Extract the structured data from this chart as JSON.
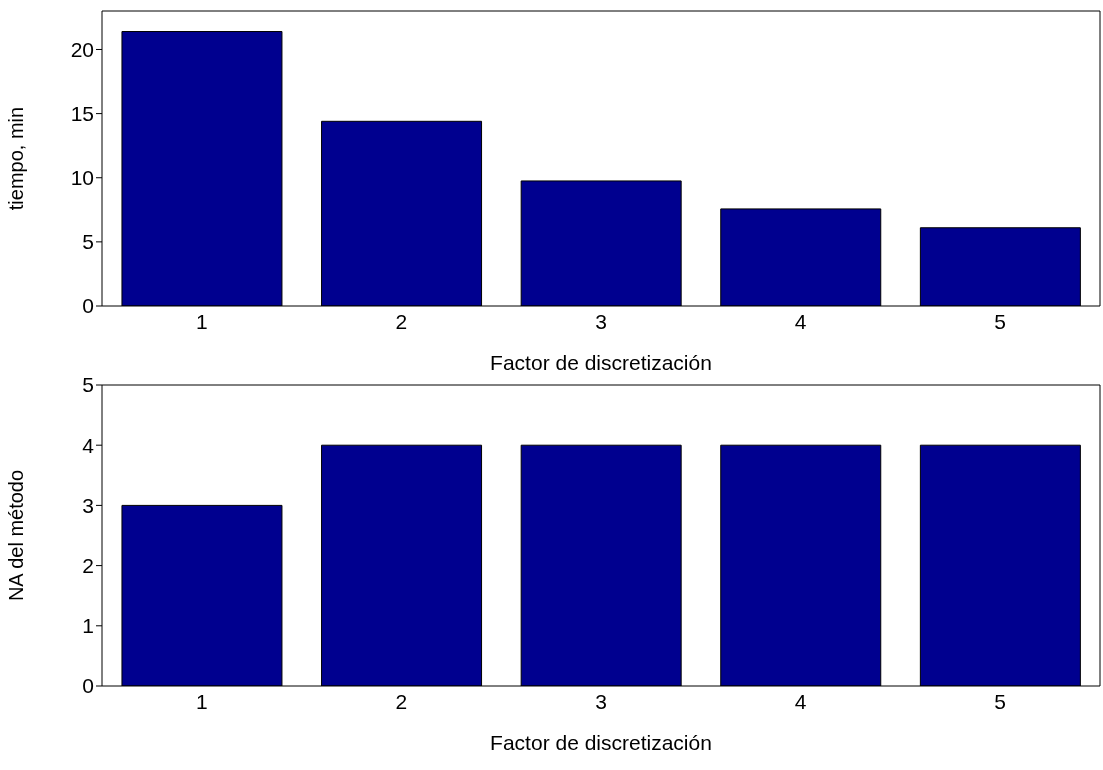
{
  "chart_data": [
    {
      "type": "bar",
      "categories": [
        "1",
        "2",
        "3",
        "4",
        "5"
      ],
      "values": [
        21.4,
        14.4,
        9.75,
        7.57,
        6.1
      ],
      "color": "#00008f",
      "ylabel": "tiempo, min",
      "xlabel": "Factor de discretización",
      "ylim": [
        0,
        23
      ],
      "yticks": [
        0,
        5,
        10,
        15,
        20
      ]
    },
    {
      "type": "bar",
      "categories": [
        "1",
        "2",
        "3",
        "4",
        "5"
      ],
      "values": [
        3,
        4,
        4,
        4,
        4
      ],
      "color": "#00008f",
      "ylabel": "NA del método",
      "xlabel": "Factor de discretización",
      "ylim": [
        0,
        5
      ],
      "yticks": [
        0,
        1,
        2,
        3,
        4,
        5
      ]
    }
  ]
}
